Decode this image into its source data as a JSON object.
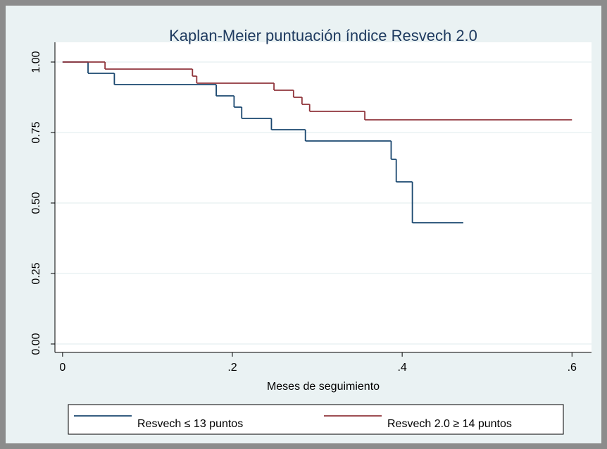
{
  "chart_data": {
    "type": "step",
    "title": "Kaplan-Meier puntuación índice Resvech 2.0",
    "xlabel": "Meses de seguimiento",
    "xlim": [
      -0.009,
      0.623
    ],
    "ylim": [
      -0.03,
      1.07
    ],
    "xticks": [
      0,
      {
        "value": 0.2,
        "label": ".2"
      },
      {
        "value": 0.4,
        "label": ".4"
      },
      {
        "value": 0.6,
        "label": ".6"
      }
    ],
    "yticks": [
      {
        "value": 0,
        "label": "0.00"
      },
      {
        "value": 0.25,
        "label": "0.25"
      },
      {
        "value": 0.5,
        "label": "0.50"
      },
      {
        "value": 0.75,
        "label": "0.75"
      },
      {
        "value": 1,
        "label": "1.00"
      }
    ],
    "grid": true,
    "legend": "bottom",
    "series": [
      {
        "name": "Resvech ≤ 13 puntos",
        "color": "#1a476f",
        "x": [
          0,
          0.03,
          0.061,
          0.181,
          0.202,
          0.211,
          0.246,
          0.286,
          0.387,
          0.393,
          0.412,
          0.472
        ],
        "values": [
          1,
          0.96,
          0.92,
          0.88,
          0.84,
          0.8,
          0.76,
          0.72,
          0.655,
          0.575,
          0.43,
          0.43
        ]
      },
      {
        "name": "Resvech 2.0 ≥ 14 puntos",
        "color": "#90353b",
        "x": [
          0,
          0.05,
          0.153,
          0.158,
          0.249,
          0.272,
          0.282,
          0.291,
          0.356,
          0.6
        ],
        "values": [
          1,
          0.975,
          0.95,
          0.925,
          0.9,
          0.875,
          0.85,
          0.825,
          0.795,
          0.795
        ]
      }
    ]
  }
}
